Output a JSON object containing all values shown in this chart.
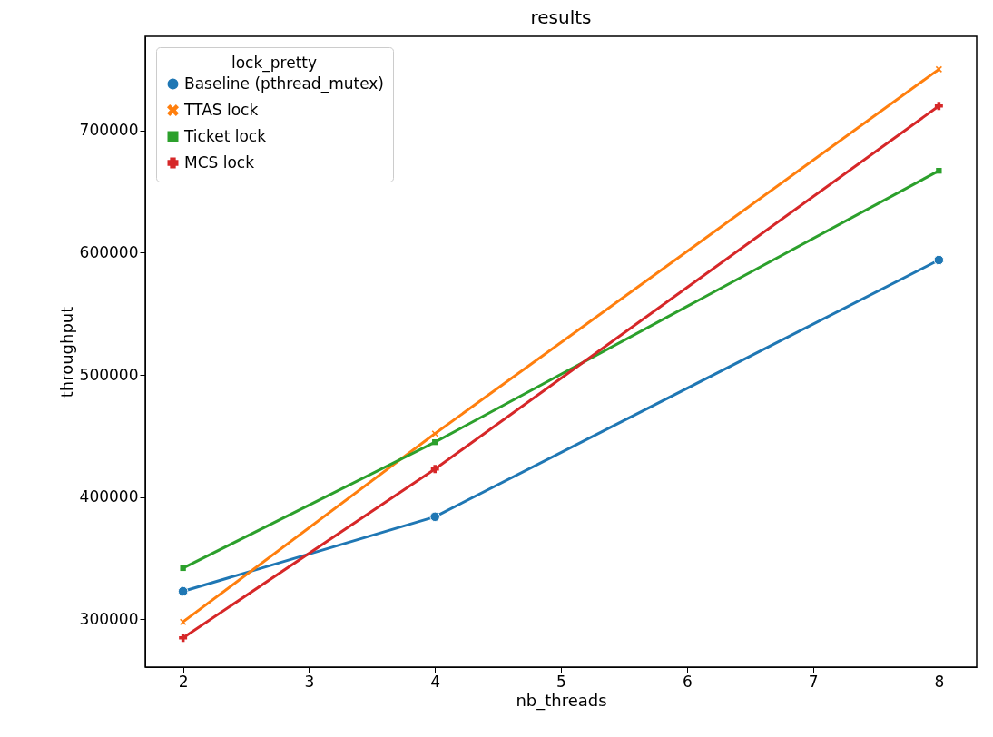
{
  "chart_data": {
    "type": "line",
    "title": "results",
    "xlabel": "nb_threads",
    "ylabel": "throughput",
    "legend_title": "lock_pretty",
    "legend": "top left",
    "grid": false,
    "x": [
      2,
      4,
      8
    ],
    "xlim": [
      1.7,
      8.3
    ],
    "xticks": [
      2,
      3,
      4,
      5,
      6,
      7,
      8
    ],
    "ylim": [
      261000,
      777000
    ],
    "yticks": [
      300000,
      400000,
      500000,
      600000,
      700000
    ],
    "series": [
      {
        "name": "Baseline (pthread_mutex)",
        "color": "#1f77b4",
        "marker": "circle",
        "values": [
          323000,
          384000,
          594000
        ]
      },
      {
        "name": "TTAS lock",
        "color": "#ff7f0e",
        "marker": "x",
        "values": [
          298000,
          452000,
          750000
        ]
      },
      {
        "name": "Ticket lock",
        "color": "#2ca02c",
        "marker": "square",
        "values": [
          342000,
          445000,
          667000
        ]
      },
      {
        "name": "MCS lock",
        "color": "#d62728",
        "marker": "cross",
        "values": [
          285000,
          423000,
          720000
        ]
      }
    ]
  }
}
